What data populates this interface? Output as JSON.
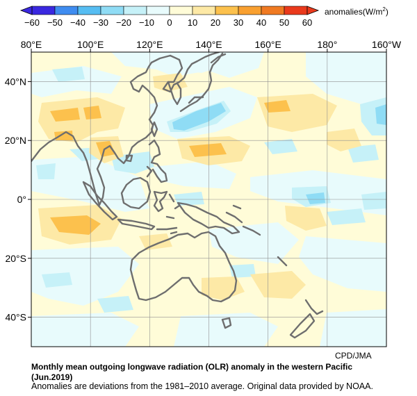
{
  "colorbar": {
    "ticks": [
      "−60",
      "−50",
      "−40",
      "−30",
      "−20",
      "−10",
      "0",
      "10",
      "20",
      "30",
      "40",
      "50",
      "60"
    ],
    "units_prefix": "anomalies(W/m",
    "units_sup": "2",
    "units_suffix": ")",
    "colors": [
      "#3a28e0",
      "#3f8cf0",
      "#56bdf2",
      "#8fdcf5",
      "#c6f1f8",
      "#e8fbfc",
      "#fffcd8",
      "#fde9a6",
      "#fcc14d",
      "#f9a030",
      "#f07a22",
      "#ea3a1c"
    ]
  },
  "map": {
    "lon_labels": [
      "80°E",
      "100°E",
      "120°E",
      "140°E",
      "160°E",
      "180°",
      "160°W"
    ],
    "lat_labels": [
      "40°N",
      "20°N",
      "0°",
      "20°S",
      "40°S"
    ],
    "lon_range": [
      80,
      200
    ],
    "lat_range": [
      -50,
      50
    ],
    "coastline_color": "#6e6e6e",
    "grid_color": "#909090"
  },
  "credit": "CPD/JMA",
  "caption": {
    "title_line1": "Monthly mean outgoing longwave radiation (OLR) anomaly in the western Pacific",
    "title_line2": "(Jun.2019)",
    "note": "Anomalies are deviations from the 1981–2010 average. Original data provided by NOAA."
  }
}
